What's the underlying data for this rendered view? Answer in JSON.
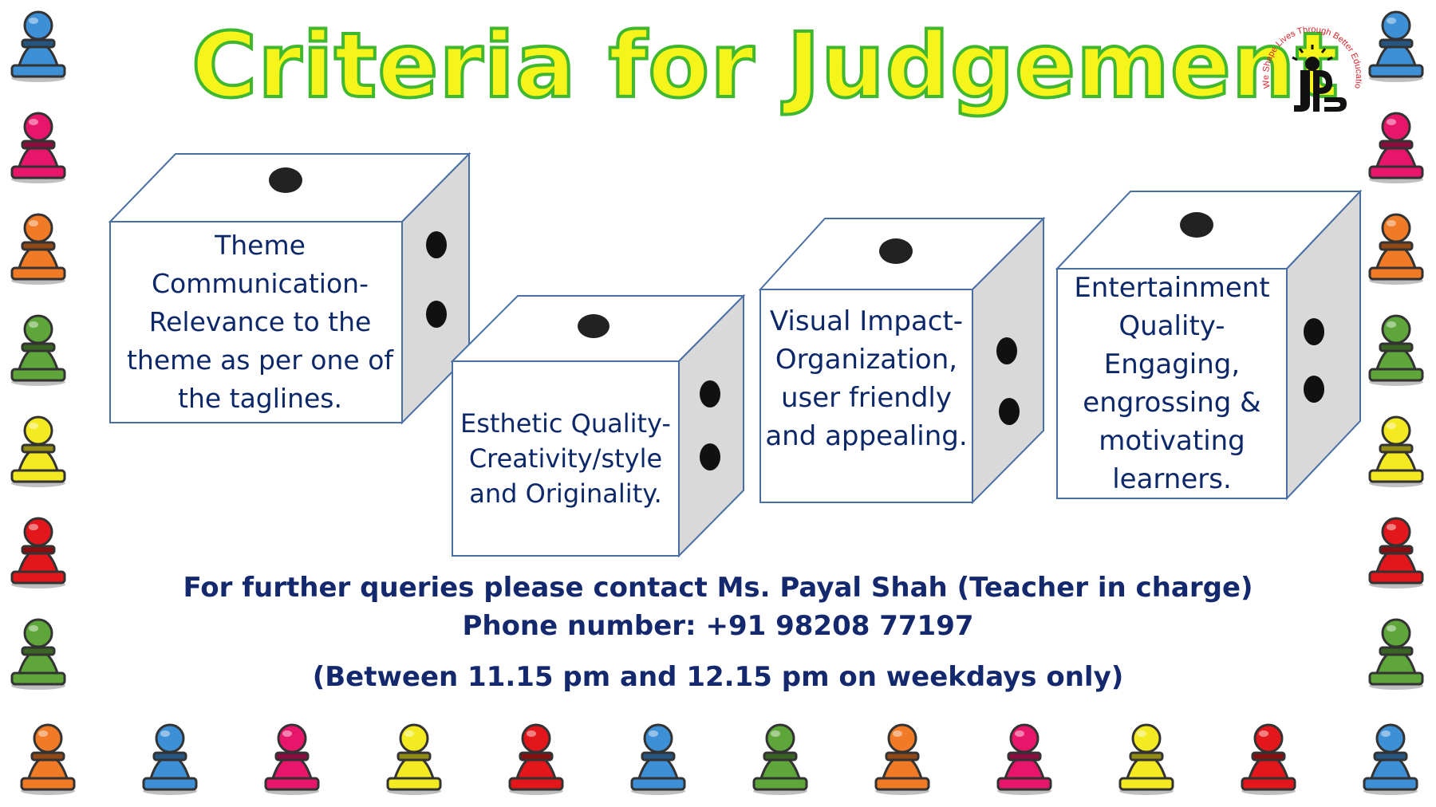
{
  "title": "Criteria for Judgement",
  "logo": {
    "arc_text": "We Shape Lives Through Better Education",
    "monogram": "DJS",
    "colors": {
      "arc": "#d8262c",
      "mark": "#111111"
    }
  },
  "criteria": [
    {
      "text": "Theme Communication-Relevance to the theme as per one of the taglines."
    },
    {
      "text": "Esthetic Quality-Creativity/style and Originality."
    },
    {
      "text": "Visual Impact-Organization, user friendly and appealing."
    },
    {
      "text": "Entertainment Quality-Engaging, engrossing & motivating learners."
    }
  ],
  "contact": {
    "line1": "For further queries please contact Ms. Payal Shah (Teacher in charge)",
    "line2": "Phone number: +91 98208 77197",
    "line3": "(Between 11.15 pm and 12.15 pm on weekdays only)"
  },
  "colors": {
    "title_fill": "#f5f51c",
    "title_outline": "#3fb72e",
    "text": "#14286e",
    "die_edge": "#4a6fa5",
    "die_side": "#d9d9d9",
    "pawn_blue": "#3d8fd6",
    "pawn_pink": "#e8166b",
    "pawn_orange": "#f07a25",
    "pawn_green": "#5fa63a",
    "pawn_yellow": "#f4ea22",
    "pawn_red": "#e3161b"
  },
  "decorations": {
    "pawn_left_column": [
      "pawn_blue",
      "pawn_pink",
      "pawn_orange",
      "pawn_green",
      "pawn_yellow",
      "pawn_red",
      "pawn_green"
    ],
    "pawn_right_column": [
      "pawn_blue",
      "pawn_pink",
      "pawn_orange",
      "pawn_green",
      "pawn_yellow",
      "pawn_red",
      "pawn_green"
    ],
    "pawn_bottom_row": [
      "pawn_orange",
      "pawn_blue",
      "pawn_pink",
      "pawn_yellow",
      "pawn_red",
      "pawn_blue",
      "pawn_green",
      "pawn_orange",
      "pawn_pink",
      "pawn_yellow",
      "pawn_red",
      "pawn_blue"
    ]
  }
}
